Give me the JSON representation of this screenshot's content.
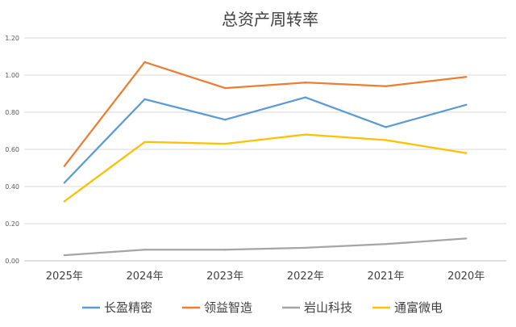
{
  "chart_data": {
    "type": "line",
    "title": "总资产周转率",
    "xlabel": "",
    "ylabel": "",
    "categories": [
      "2025年",
      "2024年",
      "2023年",
      "2022年",
      "2021年",
      "2020年"
    ],
    "ylim": [
      0,
      1.2
    ],
    "yticks": [
      "0.00",
      "0.20",
      "0.40",
      "0.60",
      "0.80",
      "1.00",
      "1.20"
    ],
    "grid": true,
    "legend": "bottom",
    "series": [
      {
        "name": "长盈精密",
        "color": "#5B9BD5",
        "values": [
          0.42,
          0.87,
          0.76,
          0.88,
          0.72,
          0.84
        ]
      },
      {
        "name": "领益智造",
        "color": "#ED7D31",
        "values": [
          0.51,
          1.07,
          0.93,
          0.96,
          0.94,
          0.99
        ]
      },
      {
        "name": "岩山科技",
        "color": "#A5A5A5",
        "values": [
          0.03,
          0.06,
          0.06,
          0.07,
          0.09,
          0.12
        ]
      },
      {
        "name": "通富微电",
        "color": "#FFC000",
        "values": [
          0.32,
          0.64,
          0.63,
          0.68,
          0.65,
          0.58
        ]
      }
    ]
  }
}
